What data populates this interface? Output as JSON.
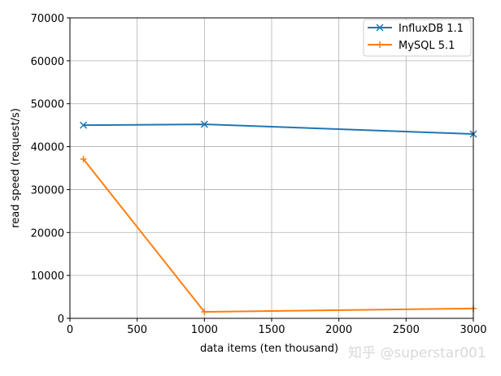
{
  "chart_data": {
    "type": "line",
    "title": "",
    "xlabel": "data items (ten thousand)",
    "ylabel": "read speed (request/s)",
    "xlim": [
      0,
      3000
    ],
    "ylim": [
      0,
      70000
    ],
    "grid": true,
    "legend_position": "upper right",
    "xticks": [
      "0",
      "500",
      "1000",
      "1500",
      "2000",
      "2500",
      "3000"
    ],
    "yticks": [
      "0",
      "10000",
      "20000",
      "30000",
      "40000",
      "50000",
      "60000",
      "70000"
    ],
    "x": [
      100,
      1000,
      3000
    ],
    "series": [
      {
        "name": "InfluxDB 1.1",
        "color": "#1f77b4",
        "marker": "x",
        "values": [
          45000,
          45200,
          42950
        ]
      },
      {
        "name": "MySQL 5.1",
        "color": "#ff7f0e",
        "marker": "+",
        "values": [
          37100,
          1500,
          2300
        ]
      }
    ]
  },
  "watermark": "知乎 @superstar001"
}
